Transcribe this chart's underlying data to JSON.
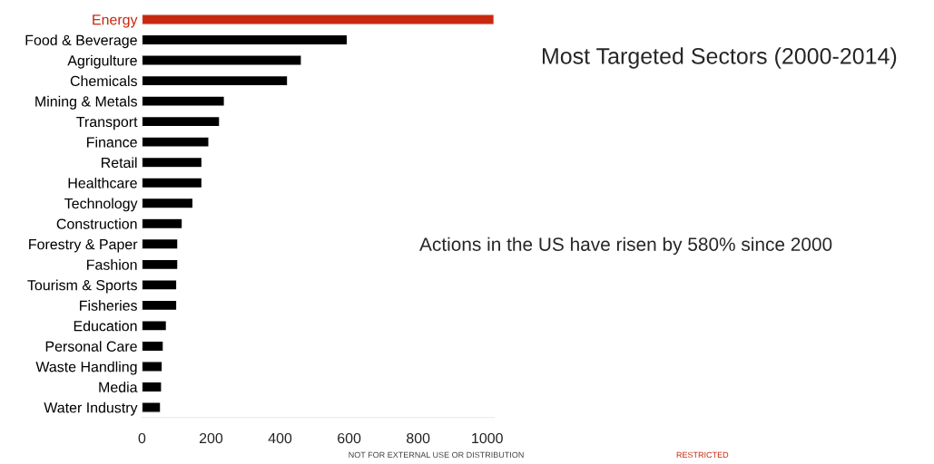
{
  "chart_data": {
    "type": "bar",
    "orientation": "horizontal",
    "title": "Most Targeted Sectors (2000-2014)",
    "categories": [
      "Energy",
      "Food & Beverage",
      "Agrigulture",
      "Chemicals",
      "Mining & Metals",
      "Transport",
      "Finance",
      "Retail",
      "Healthcare",
      "Technology",
      "Construction",
      "Forestry & Paper",
      "Fashion",
      "Tourism & Sports",
      "Fisheries",
      "Education",
      "Personal Care",
      "Waste Handling",
      "Media",
      "Water Industry"
    ],
    "values": [
      1020,
      595,
      462,
      422,
      239,
      225,
      194,
      174,
      174,
      148,
      117,
      104,
      104,
      101,
      101,
      71,
      62,
      59,
      57,
      54
    ],
    "colors": [
      "#c8280f",
      "#000000",
      "#000000",
      "#000000",
      "#000000",
      "#000000",
      "#000000",
      "#000000",
      "#000000",
      "#000000",
      "#000000",
      "#000000",
      "#000000",
      "#000000",
      "#000000",
      "#000000",
      "#000000",
      "#000000",
      "#000000",
      "#000000"
    ],
    "xlim": [
      0,
      1020
    ],
    "xticks": [
      0,
      200,
      400,
      600,
      800,
      1000
    ],
    "grid": false,
    "legend": false,
    "annotations": [
      "Actions in the US have risen by 580% since 2000",
      "NOT FOR EXTERNAL USE OR DISTRIBUTION",
      "RESTRICTED"
    ]
  }
}
